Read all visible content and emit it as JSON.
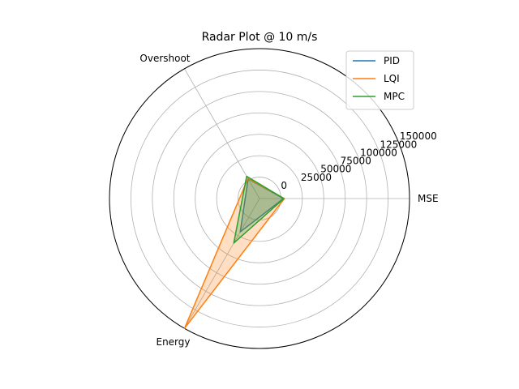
{
  "chart_data": {
    "type": "radar",
    "title": "Radar Plot @ 10 m/s",
    "axes": [
      "MSE",
      "Overshoot",
      "Energy"
    ],
    "radial_ticks": [
      0,
      25000,
      50000,
      75000,
      100000,
      125000,
      150000
    ],
    "rlim": [
      -25000,
      150000
    ],
    "grid": true,
    "legend_position": "top-right",
    "series": [
      {
        "name": "PID",
        "color": "#1f77b4",
        "values": [
          3000,
          1500,
          20000
        ]
      },
      {
        "name": "LQI",
        "color": "#ff7f0e",
        "values": [
          4000,
          2000,
          150000
        ]
      },
      {
        "name": "MPC",
        "color": "#2ca02c",
        "values": [
          3500,
          5000,
          35000
        ]
      }
    ]
  }
}
